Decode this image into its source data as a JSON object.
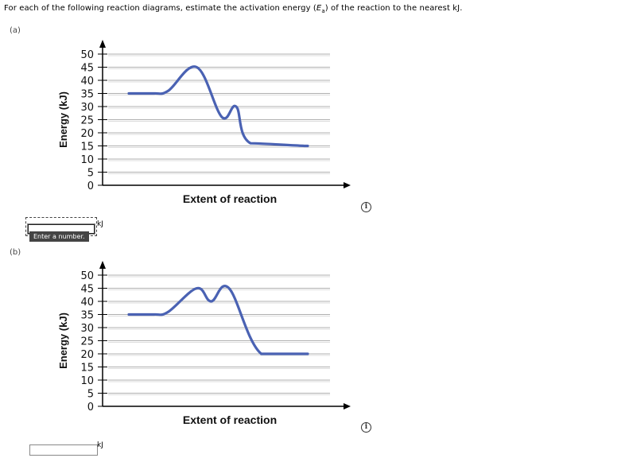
{
  "prompt": {
    "before": "For each of the following reaction diagrams, estimate the activation energy (",
    "symbol": "E",
    "subscript": "a",
    "after": ") of the reaction to the nearest kJ."
  },
  "parts": [
    {
      "label": "(a)",
      "answer": {
        "value": "",
        "placeholder": "",
        "unit": "kJ",
        "tooltip": "Enter a number."
      }
    },
    {
      "label": "(b)",
      "answer": {
        "value": "",
        "placeholder": "",
        "unit": "kJ",
        "tooltip": ""
      }
    }
  ],
  "info_icon": "info-icon",
  "chart_data": [
    {
      "type": "line",
      "ylabel": "Energy (kJ)",
      "xlabel": "Extent of reaction",
      "yticks": [
        0,
        5,
        10,
        15,
        20,
        25,
        30,
        35,
        40,
        45,
        50
      ],
      "ylim": [
        0,
        50
      ],
      "grid": true,
      "line_color": "#4a62b3",
      "series": [
        {
          "x": [
            0,
            0.14,
            0.22,
            0.38,
            0.52,
            0.6,
            0.68,
            1.0
          ],
          "y": [
            35,
            35,
            36,
            45,
            26,
            30,
            16,
            15
          ]
        }
      ]
    },
    {
      "type": "line",
      "ylabel": "Energy (kJ)",
      "xlabel": "Extent of reaction",
      "yticks": [
        0,
        5,
        10,
        15,
        20,
        25,
        30,
        35,
        40,
        45,
        50
      ],
      "ylim": [
        0,
        50
      ],
      "grid": true,
      "line_color": "#4a62b3",
      "series": [
        {
          "x": [
            0,
            0.14,
            0.22,
            0.38,
            0.46,
            0.56,
            0.74,
            1.0
          ],
          "y": [
            35,
            35,
            36,
            45,
            40,
            45,
            20,
            20
          ]
        }
      ]
    }
  ]
}
